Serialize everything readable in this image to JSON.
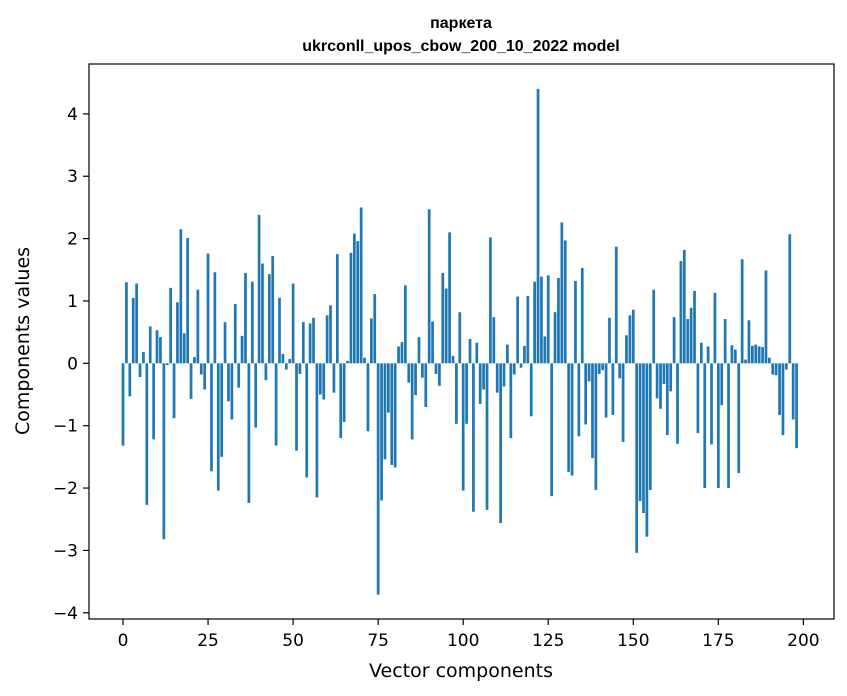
{
  "chart_data": {
    "type": "bar",
    "title": "паркета",
    "subtitle": "ukrconll_upos_cbow_200_10_2022 model",
    "xlabel": "Vector components",
    "ylabel": "Components values",
    "xlim": [
      -10,
      209
    ],
    "ylim": [
      -4.1,
      4.8
    ],
    "xticks": [
      0,
      25,
      50,
      75,
      100,
      125,
      150,
      175,
      200
    ],
    "yticks": [
      -4,
      -3,
      -2,
      -1,
      0,
      1,
      2,
      3,
      4
    ],
    "xtick_labels": [
      "0",
      "25",
      "50",
      "75",
      "100",
      "125",
      "150",
      "175",
      "200"
    ],
    "ytick_labels": [
      "−4",
      "−3",
      "−2",
      "−1",
      "0",
      "1",
      "2",
      "3",
      "4"
    ],
    "grid": false,
    "bar_color": "#1f77b4",
    "x_start": 0,
    "values": [
      -1.32,
      1.3,
      -0.53,
      1.05,
      1.28,
      -0.22,
      0.18,
      -2.27,
      0.59,
      -1.22,
      0.53,
      0.42,
      -2.82,
      -0.03,
      1.21,
      -0.88,
      0.98,
      2.15,
      0.48,
      2.01,
      -0.57,
      0.1,
      1.18,
      -0.18,
      -0.42,
      1.76,
      -1.73,
      1.46,
      -2.04,
      -1.5,
      0.66,
      -0.61,
      -0.9,
      0.95,
      -0.39,
      0.44,
      1.45,
      -2.24,
      1.31,
      -1.03,
      2.38,
      1.6,
      -0.27,
      1.43,
      1.72,
      -1.32,
      1.05,
      0.15,
      -0.1,
      0.07,
      1.28,
      -1.4,
      -0.17,
      0.66,
      -1.83,
      0.64,
      0.73,
      -2.15,
      -0.5,
      -0.58,
      0.77,
      0.93,
      -0.47,
      1.75,
      -1.2,
      -0.94,
      0.04,
      1.77,
      2.08,
      1.96,
      2.5,
      0.09,
      -1.09,
      0.72,
      1.11,
      -3.71,
      -2.2,
      -1.54,
      -0.79,
      -1.63,
      -1.67,
      0.27,
      0.34,
      1.25,
      -0.31,
      -1.22,
      -0.51,
      0.42,
      -0.23,
      -0.7,
      2.47,
      0.67,
      -0.17,
      -0.36,
      1.45,
      1.2,
      2.1,
      0.12,
      -0.97,
      0.82,
      -2.04,
      -0.97,
      0.39,
      -2.38,
      0.33,
      -0.65,
      -0.42,
      -2.35,
      2.02,
      0.74,
      -0.47,
      -2.56,
      -0.37,
      0.3,
      -1.2,
      -0.18,
      1.07,
      -0.07,
      0.28,
      1.08,
      -0.85,
      1.31,
      4.4,
      1.39,
      0.43,
      1.41,
      -2.13,
      0.82,
      1.37,
      2.26,
      1.97,
      -1.74,
      -1.8,
      1.32,
      -1.17,
      1.53,
      -0.98,
      -0.29,
      -1.52,
      -2.03,
      -0.17,
      -0.11,
      -0.87,
      0.73,
      -0.83,
      1.87,
      -0.24,
      -1.26,
      0.45,
      0.77,
      0.86,
      -3.04,
      -2.21,
      -2.4,
      -2.78,
      -2.03,
      1.18,
      -0.56,
      -0.73,
      -0.33,
      -1.15,
      -0.45,
      0.74,
      -1.29,
      1.64,
      1.82,
      0.71,
      0.89,
      1.16,
      -1.12,
      0.33,
      -2.0,
      0.27,
      -1.3,
      1.13,
      -2.0,
      -0.67,
      0.71,
      -2.0,
      0.29,
      0.22,
      -1.76,
      1.67,
      0.06,
      0.69,
      0.28,
      0.3,
      0.27,
      0.26,
      1.49,
      0.09,
      -0.18,
      -0.19,
      -0.83,
      -1.15,
      -0.1,
      2.07,
      -0.9,
      -1.36
    ]
  }
}
